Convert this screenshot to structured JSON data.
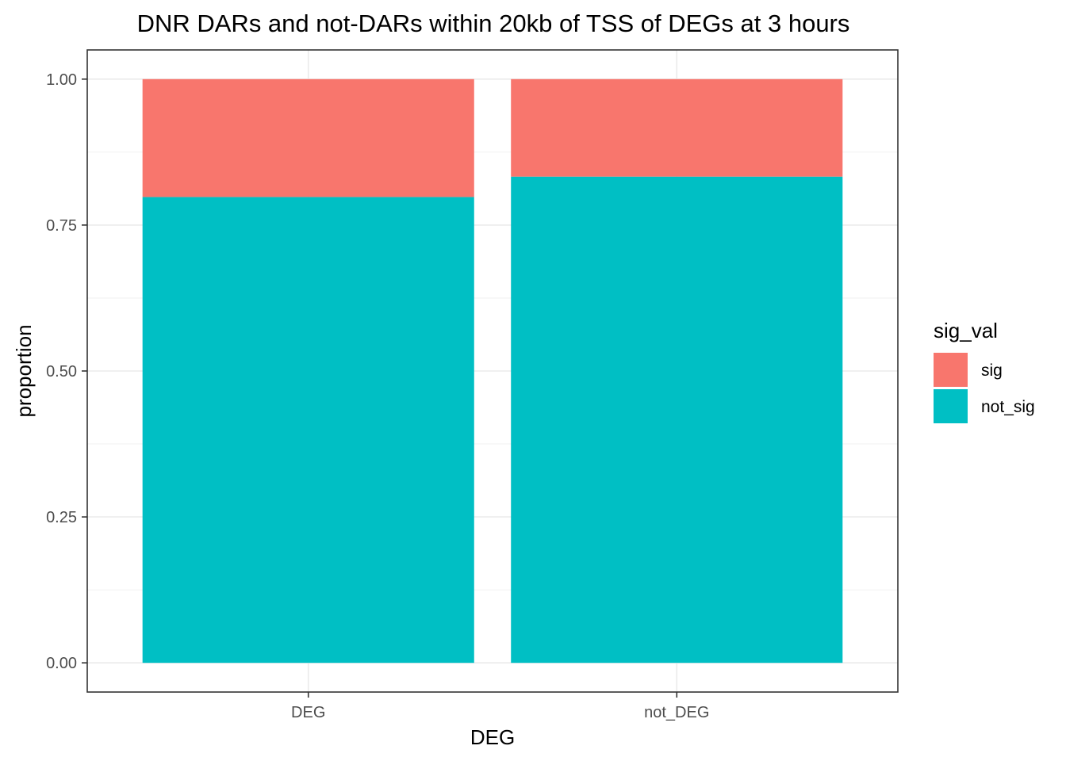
{
  "chart_data": {
    "type": "bar",
    "stacked": true,
    "title": "DNR DARs and not-DARs within 20kb of TSS of DEGs at 3 hours",
    "xlabel": "DEG",
    "ylabel": "proportion",
    "categories": [
      "DEG",
      "not_DEG"
    ],
    "series": [
      {
        "name": "not_sig",
        "values": [
          0.798,
          0.833
        ],
        "color": "#00BFC4"
      },
      {
        "name": "sig",
        "values": [
          0.202,
          0.167
        ],
        "color": "#F8766D"
      }
    ],
    "ylim": [
      -0.05,
      1.05
    ],
    "yticks": [
      0,
      0.25,
      0.5,
      0.75,
      1
    ],
    "ytick_labels": [
      "0.00",
      "0.25",
      "0.50",
      "0.75",
      "1.00"
    ],
    "grid": true,
    "legend": {
      "title": "sig_val",
      "position": "right",
      "entries": [
        {
          "label": "sig",
          "color": "#F8766D"
        },
        {
          "label": "not_sig",
          "color": "#00BFC4"
        }
      ]
    }
  }
}
